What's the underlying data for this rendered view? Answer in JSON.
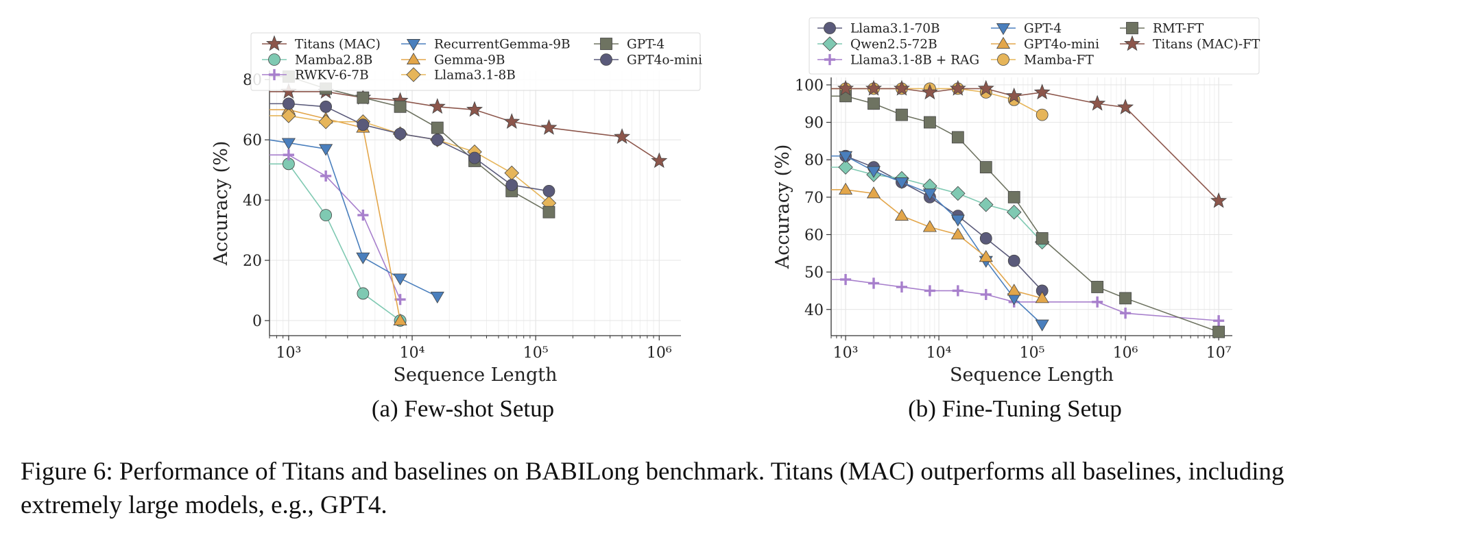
{
  "chart_data": [
    {
      "type": "line",
      "subcaption": "(a) Few-shot Setup",
      "xlabel": "Sequence Length",
      "ylabel": "Accuracy (%)",
      "x_scale": "log",
      "xlim": [
        700,
        1500000
      ],
      "ylim": [
        -5,
        83
      ],
      "x_ticks": [
        1000,
        10000,
        100000,
        1000000
      ],
      "x_tick_labels": [
        "10³",
        "10⁴",
        "10⁵",
        "10⁶"
      ],
      "y_ticks": [
        0,
        20,
        40,
        60,
        80
      ],
      "y_tick_labels": [
        "0",
        "20",
        "40",
        "60",
        "80"
      ],
      "grid": true,
      "legend_position": "top",
      "series": [
        {
          "name": "Titans (MAC)",
          "color": "#8c564b",
          "marker": "star",
          "x": [
            700,
            1000,
            2000,
            4000,
            8000,
            16000,
            32000,
            64000,
            128000,
            500000,
            1000000
          ],
          "y": [
            76,
            76,
            76,
            74,
            73,
            71,
            70,
            66,
            64,
            61,
            53
          ]
        },
        {
          "name": "Mamba2.8B",
          "color": "#7fc9b2",
          "marker": "circle",
          "x": [
            700,
            1000,
            2000,
            4000,
            8000
          ],
          "y": [
            52,
            52,
            35,
            9,
            0
          ]
        },
        {
          "name": "RWKV-6-7B",
          "color": "#a77fcc",
          "marker": "plus",
          "x": [
            700,
            1000,
            2000,
            4000,
            8000
          ],
          "y": [
            55,
            55,
            48,
            35,
            7
          ]
        },
        {
          "name": "RecurrentGemma-9B",
          "color": "#4a7fbd",
          "marker": "triangle-down",
          "x": [
            700,
            1000,
            2000,
            4000,
            8000,
            16000
          ],
          "y": [
            60,
            59,
            57,
            21,
            14,
            8
          ]
        },
        {
          "name": "Gemma-9B",
          "color": "#e3a64a",
          "marker": "triangle-up",
          "x": [
            700,
            1000,
            2000,
            4000,
            8000
          ],
          "y": [
            70,
            70,
            67,
            64,
            0
          ]
        },
        {
          "name": "Llama3.1-8B",
          "color": "#e6b55a",
          "marker": "diamond",
          "x": [
            700,
            1000,
            2000,
            4000,
            8000,
            16000,
            32000,
            64000,
            128000
          ],
          "y": [
            68,
            68,
            66,
            66,
            62,
            60,
            56,
            49,
            39
          ]
        },
        {
          "name": "GPT-4",
          "color": "#6e7361",
          "marker": "square",
          "x": [
            700,
            1000,
            2000,
            4000,
            8000,
            16000,
            32000,
            64000,
            128000
          ],
          "y": [
            81,
            81,
            77,
            74,
            71,
            64,
            53,
            43,
            36
          ]
        },
        {
          "name": "GPT4o-mini",
          "color": "#5a5a7a",
          "marker": "circle",
          "x": [
            700,
            1000,
            2000,
            4000,
            8000,
            16000,
            32000,
            64000,
            128000
          ],
          "y": [
            72,
            72,
            71,
            65,
            62,
            60,
            54,
            45,
            43
          ]
        }
      ]
    },
    {
      "type": "line",
      "subcaption": "(b) Fine-Tuning Setup",
      "xlabel": "Sequence Length",
      "ylabel": "Accuracy (%)",
      "x_scale": "log",
      "xlim": [
        700,
        14000000
      ],
      "ylim": [
        33,
        102
      ],
      "x_ticks": [
        1000,
        10000,
        100000,
        1000000,
        10000000
      ],
      "x_tick_labels": [
        "10³",
        "10⁴",
        "10⁵",
        "10⁶",
        "10⁷"
      ],
      "y_ticks": [
        40,
        50,
        60,
        70,
        80,
        90,
        100
      ],
      "y_tick_labels": [
        "40",
        "50",
        "60",
        "70",
        "80",
        "90",
        "100"
      ],
      "grid": true,
      "legend_position": "top",
      "series": [
        {
          "name": "Llama3.1-70B",
          "color": "#5a5a7a",
          "marker": "circle",
          "x": [
            700,
            1000,
            2000,
            4000,
            8000,
            16000,
            32000,
            64000,
            128000
          ],
          "y": [
            81,
            81,
            78,
            74,
            70,
            65,
            59,
            53,
            45
          ]
        },
        {
          "name": "Qwen2.5-72B",
          "color": "#7fc9b2",
          "marker": "diamond",
          "x": [
            700,
            1000,
            2000,
            4000,
            8000,
            16000,
            32000,
            64000,
            128000
          ],
          "y": [
            78,
            78,
            76,
            75,
            73,
            71,
            68,
            66,
            58
          ]
        },
        {
          "name": "Llama3.1-8B + RAG",
          "color": "#a77fcc",
          "marker": "plus",
          "x": [
            700,
            1000,
            2000,
            4000,
            8000,
            16000,
            32000,
            64000,
            500000,
            1000000,
            10000000
          ],
          "y": [
            48,
            48,
            47,
            46,
            45,
            45,
            44,
            42,
            42,
            39,
            37
          ]
        },
        {
          "name": "GPT-4",
          "color": "#4a7fbd",
          "marker": "triangle-down",
          "x": [
            700,
            1000,
            2000,
            4000,
            8000,
            16000,
            32000,
            64000,
            128000
          ],
          "y": [
            81,
            81,
            77,
            74,
            71,
            64,
            53,
            43,
            36
          ]
        },
        {
          "name": "GPT4o-mini",
          "color": "#e3a64a",
          "marker": "triangle-up",
          "x": [
            700,
            1000,
            2000,
            4000,
            8000,
            16000,
            32000,
            64000,
            128000
          ],
          "y": [
            72,
            72,
            71,
            65,
            62,
            60,
            54,
            45,
            43
          ]
        },
        {
          "name": "Mamba-FT",
          "color": "#e6b55a",
          "marker": "circle",
          "x": [
            700,
            1000,
            2000,
            4000,
            8000,
            16000,
            32000,
            64000,
            128000
          ],
          "y": [
            99,
            99,
            99,
            99,
            99,
            99,
            98,
            96,
            92
          ]
        },
        {
          "name": "RMT-FT",
          "color": "#6e7361",
          "marker": "square",
          "x": [
            700,
            1000,
            2000,
            4000,
            8000,
            16000,
            32000,
            64000,
            128000,
            500000,
            1000000,
            10000000
          ],
          "y": [
            97,
            97,
            95,
            92,
            90,
            86,
            78,
            70,
            59,
            46,
            43,
            34
          ]
        },
        {
          "name": "Titans (MAC)-FT",
          "color": "#8c564b",
          "marker": "star",
          "x": [
            700,
            1000,
            2000,
            4000,
            8000,
            16000,
            32000,
            64000,
            128000,
            500000,
            1000000,
            10000000
          ],
          "y": [
            99,
            99,
            99,
            99,
            98,
            99,
            99,
            97,
            98,
            95,
            94,
            69
          ]
        }
      ]
    }
  ],
  "caption": {
    "line1": "Figure 6: Performance of Titans and baselines on BABILong benchmark. Titans (MAC) outperforms all baselines, including",
    "line2": "extremely large models, e.g., GPT4."
  }
}
